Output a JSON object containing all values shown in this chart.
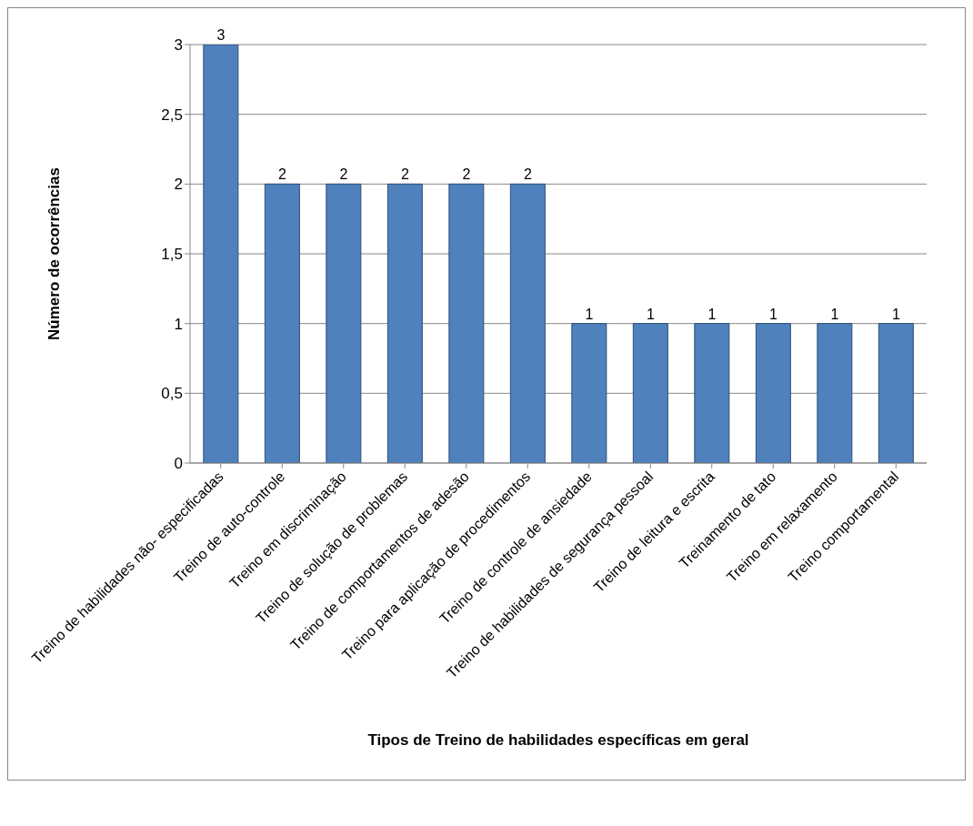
{
  "chart_data": {
    "type": "bar",
    "xlabel": "Tipos de Treino de habilidades específicas em geral",
    "ylabel": "Número de ocorrências",
    "categories": [
      "Treino de habilidades não- especificadas",
      "Treino de auto-controle",
      "Treino em discriminação",
      "Treino de solução de problemas",
      "Treino de comportamentos de adesão",
      "Treino para aplicação de procedimentos",
      "Treino de controle de ansiedade",
      "Treino de habilidades de segurança pessoal",
      "Treino de leitura e escrita",
      "Treinamento de tato",
      "Treino em relaxamento",
      "Treino comportamental"
    ],
    "values": [
      3,
      2,
      2,
      2,
      2,
      2,
      1,
      1,
      1,
      1,
      1,
      1
    ],
    "color": "#4f81bd",
    "ylim": [
      0,
      3
    ],
    "yticks": [
      0,
      {
        "value": 0.5,
        "label": "0,5"
      },
      1,
      {
        "value": 1.5,
        "label": "1,5"
      },
      2,
      {
        "value": 2.5,
        "label": "2,5"
      },
      3
    ],
    "grid": "y",
    "data_labels": true,
    "legend": false
  }
}
